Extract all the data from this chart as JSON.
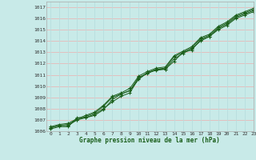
{
  "xlabel": "Graphe pression niveau de la mer (hPa)",
  "xlim": [
    -0.5,
    23
  ],
  "ylim": [
    1006,
    1017.5
  ],
  "yticks": [
    1006,
    1007,
    1008,
    1009,
    1010,
    1011,
    1012,
    1013,
    1014,
    1015,
    1016,
    1017
  ],
  "xticks": [
    0,
    1,
    2,
    3,
    4,
    5,
    6,
    7,
    8,
    9,
    10,
    11,
    12,
    13,
    14,
    15,
    16,
    17,
    18,
    19,
    20,
    21,
    22,
    23
  ],
  "bg_color": "#c8eae8",
  "grid_h_color": "#e8b8b8",
  "grid_v_color": "#b8dede",
  "line_color": "#1a5e1a",
  "lines": [
    [
      1006.3,
      1006.5,
      1006.5,
      1007.0,
      1007.2,
      1007.5,
      1008.0,
      1008.6,
      1009.1,
      1009.4,
      1010.7,
      1011.2,
      1011.5,
      1011.5,
      1012.2,
      1013.0,
      1013.2,
      1014.1,
      1014.4,
      1015.1,
      1015.5,
      1016.1,
      1016.4,
      1016.7
    ],
    [
      1006.3,
      1006.5,
      1006.6,
      1007.0,
      1007.3,
      1007.6,
      1008.2,
      1009.0,
      1009.3,
      1009.6,
      1010.8,
      1011.1,
      1011.5,
      1011.6,
      1012.6,
      1013.0,
      1013.4,
      1014.2,
      1014.5,
      1015.2,
      1015.6,
      1016.2,
      1016.5,
      1016.8
    ],
    [
      1006.4,
      1006.6,
      1006.7,
      1007.1,
      1007.4,
      1007.7,
      1008.3,
      1009.1,
      1009.4,
      1009.8,
      1010.9,
      1011.3,
      1011.6,
      1011.7,
      1012.7,
      1013.1,
      1013.5,
      1014.3,
      1014.6,
      1015.3,
      1015.7,
      1016.3,
      1016.6,
      1016.9
    ],
    [
      1006.2,
      1006.4,
      1006.4,
      1007.2,
      1007.2,
      1007.4,
      1007.9,
      1008.8,
      1009.3,
      1009.6,
      1010.6,
      1011.2,
      1011.4,
      1011.5,
      1012.4,
      1012.9,
      1013.3,
      1014.0,
      1014.4,
      1015.0,
      1015.4,
      1016.0,
      1016.3,
      1016.6
    ]
  ]
}
